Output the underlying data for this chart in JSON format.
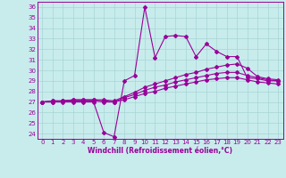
{
  "xlabel": "Windchill (Refroidissement éolien,°C)",
  "background_color": "#c8ecec",
  "line_color": "#990099",
  "grid_color": "#a8d4d4",
  "xlim": [
    -0.5,
    23.5
  ],
  "ylim": [
    23.5,
    36.5
  ],
  "yticks": [
    24,
    25,
    26,
    27,
    28,
    29,
    30,
    31,
    32,
    33,
    34,
    35,
    36
  ],
  "xticks": [
    0,
    1,
    2,
    3,
    4,
    5,
    6,
    7,
    8,
    9,
    10,
    11,
    12,
    13,
    14,
    15,
    16,
    17,
    18,
    19,
    20,
    21,
    22,
    23
  ],
  "series1": [
    27.0,
    27.0,
    27.0,
    27.0,
    27.0,
    27.0,
    24.1,
    23.7,
    29.0,
    29.5,
    36.0,
    31.2,
    33.2,
    33.3,
    33.2,
    31.3,
    32.5,
    31.8,
    31.3,
    31.3,
    29.3,
    29.2,
    29.0,
    29.0
  ],
  "series2": [
    27.0,
    27.1,
    27.1,
    27.2,
    27.2,
    27.2,
    27.2,
    27.1,
    27.5,
    27.9,
    28.4,
    28.7,
    29.0,
    29.3,
    29.6,
    29.8,
    30.1,
    30.3,
    30.5,
    30.6,
    30.2,
    29.4,
    29.2,
    29.1
  ],
  "series3": [
    27.0,
    27.1,
    27.1,
    27.2,
    27.2,
    27.2,
    27.1,
    27.0,
    27.4,
    27.7,
    28.1,
    28.4,
    28.6,
    28.9,
    29.1,
    29.3,
    29.5,
    29.7,
    29.8,
    29.8,
    29.5,
    29.3,
    29.1,
    29.0
  ],
  "series4": [
    27.0,
    27.0,
    27.1,
    27.1,
    27.1,
    27.1,
    27.0,
    27.0,
    27.2,
    27.5,
    27.8,
    28.0,
    28.3,
    28.5,
    28.7,
    28.9,
    29.1,
    29.2,
    29.3,
    29.3,
    29.1,
    28.9,
    28.8,
    28.7
  ]
}
